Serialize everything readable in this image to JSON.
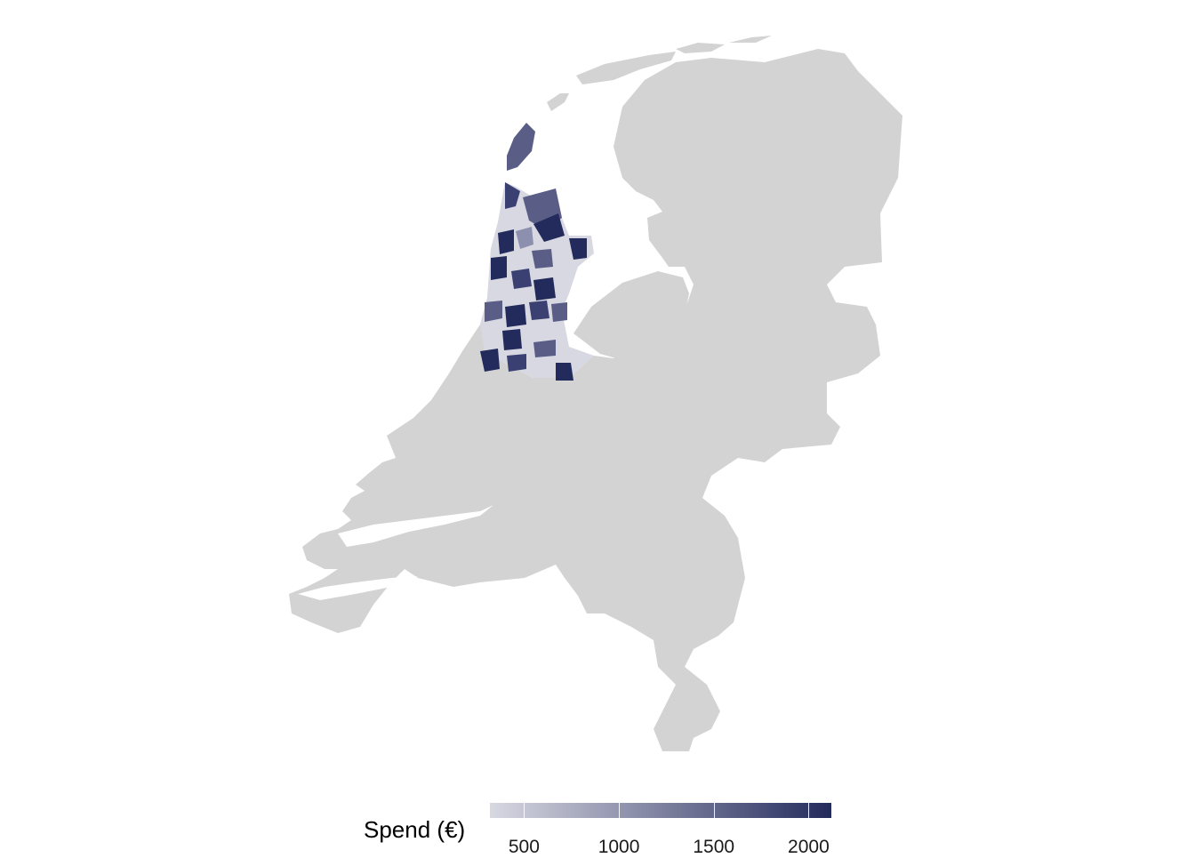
{
  "chart_data": {
    "type": "choropleth",
    "region": "Netherlands",
    "highlighted_province": "Noord-Holland",
    "base_fill": "#d3d3d3",
    "legend": {
      "title": "Spend (€)",
      "min": 320,
      "max": 2120,
      "ticks": [
        500,
        1000,
        1500,
        2000
      ],
      "tick_labels": [
        "500",
        "1000",
        "1500",
        "2000"
      ],
      "color_low": "#d8d8e2",
      "color_high": "#232b5c"
    },
    "position": "bottom"
  }
}
